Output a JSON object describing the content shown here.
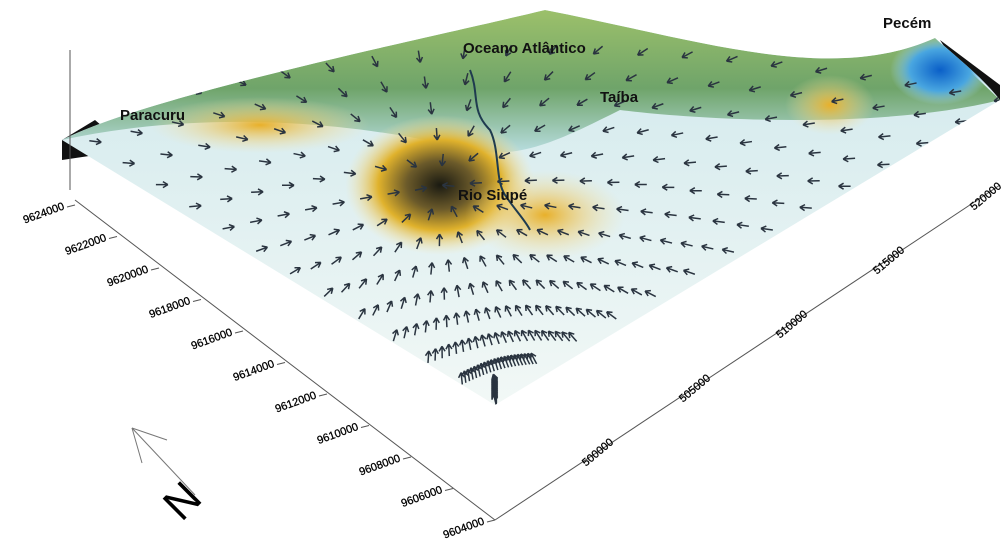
{
  "places": {
    "paracuru": "Paracuru",
    "ocean": "Oceano Atlântico",
    "taiba": "Taíba",
    "pecem": "Pecém",
    "river": "Rio Siupé"
  },
  "axes": {
    "north_axis": [
      "9624000",
      "9622000",
      "9620000",
      "9618000",
      "9616000",
      "9614000",
      "9612000",
      "9610000",
      "9608000",
      "9606000",
      "9604000"
    ],
    "east_axis": [
      "500000",
      "505000",
      "510000",
      "515000",
      "520000"
    ]
  },
  "compass": "N"
}
